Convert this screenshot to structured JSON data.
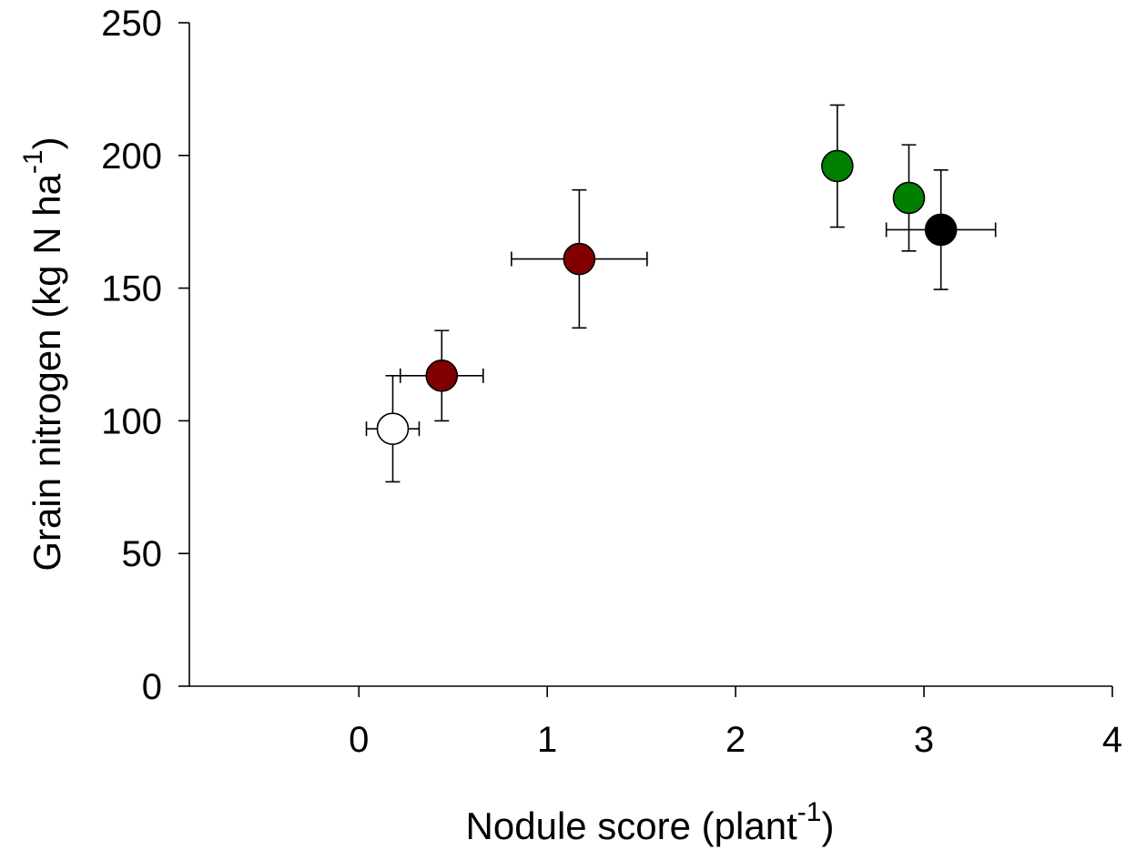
{
  "chart_data": {
    "type": "scatter",
    "title": "",
    "xlabel": {
      "main": "Nodule score (plant",
      "superscript": "-1",
      "close": ")"
    },
    "ylabel": {
      "main": "Grain nitrogen (kg N ha",
      "superscript": "-1",
      "close": ")"
    },
    "xlim": [
      -0.9,
      4
    ],
    "ylim": [
      0,
      250
    ],
    "x_ticks": [
      0,
      1,
      2,
      3,
      4
    ],
    "y_ticks": [
      0,
      50,
      100,
      150,
      200,
      250
    ],
    "grid": false,
    "legend": "none",
    "points": [
      {
        "x": 0.18,
        "y": 97,
        "x_err": 0.14,
        "y_err": 20,
        "color": "#ffffff"
      },
      {
        "x": 0.44,
        "y": 117,
        "x_err": 0.22,
        "y_err": 17,
        "color": "#800000"
      },
      {
        "x": 1.17,
        "y": 161,
        "x_err": 0.36,
        "y_err": 26,
        "color": "#800000"
      },
      {
        "x": 2.54,
        "y": 196,
        "x_err": 0,
        "y_err": 23,
        "color": "#008000"
      },
      {
        "x": 2.92,
        "y": 184,
        "x_err": 0,
        "y_err": 20,
        "color": "#008000"
      },
      {
        "x": 3.09,
        "y": 172,
        "x_err": 0.29,
        "y_err": 22.5,
        "color": "#000000"
      }
    ]
  }
}
